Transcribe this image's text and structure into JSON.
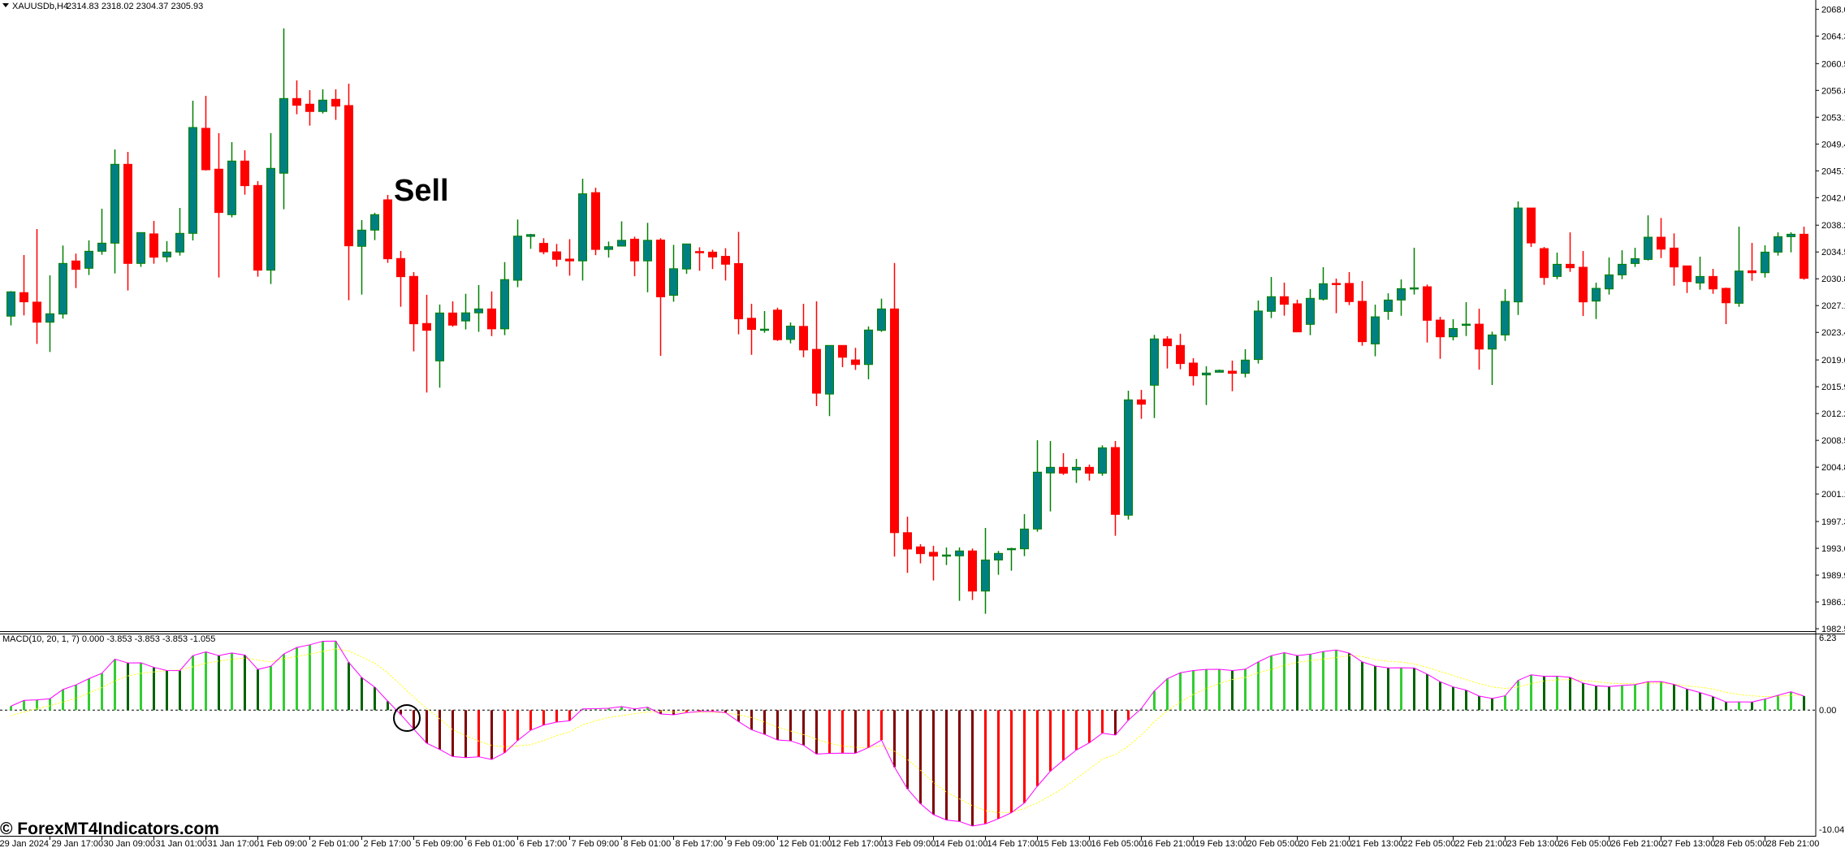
{
  "header": {
    "collapse_icon": "triangle-down-icon",
    "symbol_timeframe": "XAUUSDb,H4",
    "ohlc": "2314.83 2318.02 2304.37 2305.93"
  },
  "annotation": {
    "sell_label": "Sell",
    "crossover_marker": "circle-marker"
  },
  "watermark": "© ForexMT4Indicators.com",
  "macd_panel": {
    "label": "MACD(10, 20, 1, 7) 0.000 -3.853 -3.853 -3.853 -1.055",
    "scale_labels": [
      "6.23",
      "0.00",
      "-10.047"
    ]
  },
  "colors": {
    "bull_body": "#008080",
    "bull_outline": "#008000",
    "bear": "#FF0000",
    "hist_up_pos": "#32CD32",
    "hist_down_pos": "#006400",
    "hist_up_neg": "#FF0000",
    "hist_down_neg": "#800000",
    "macd_line": "#FF00FF",
    "signal_line": "#FFFF00"
  },
  "chart_data": [
    {
      "type": "candlestick",
      "title": "XAUUSDb,H4",
      "ylim": [
        1982.5,
        2068.0
      ],
      "price_ticks": [
        "2068.00",
        "2064.30",
        "2060.50",
        "2056.80",
        "2053.10",
        "2049.40",
        "2045.70",
        "2042.00",
        "2038.20",
        "2034.50",
        "2030.80",
        "2027.10",
        "2023.40",
        "2019.60",
        "2015.90",
        "2012.20",
        "2008.50",
        "2004.80",
        "2001.10",
        "1997.30",
        "1993.60",
        "1989.90",
        "1986.20",
        "1982.50"
      ],
      "time_labels": [
        "29 Jan 2024",
        "29 Jan 17:00",
        "30 Jan 09:00",
        "31 Jan 01:00",
        "31 Jan 17:00",
        "1 Feb 09:00",
        "2 Feb 01:00",
        "2 Feb 17:00",
        "5 Feb 09:00",
        "6 Feb 01:00",
        "6 Feb 17:00",
        "7 Feb 09:00",
        "8 Feb 01:00",
        "8 Feb 17:00",
        "9 Feb 09:00",
        "12 Feb 01:00",
        "12 Feb 17:00",
        "13 Feb 09:00",
        "14 Feb 01:00",
        "14 Feb 17:00",
        "15 Feb 13:00",
        "16 Feb 05:00",
        "16 Feb 21:00",
        "19 Feb 13:00",
        "20 Feb 05:00",
        "20 Feb 21:00",
        "21 Feb 13:00",
        "22 Feb 05:00",
        "22 Feb 21:00",
        "23 Feb 13:00",
        "26 Feb 05:00",
        "26 Feb 21:00",
        "27 Feb 13:00",
        "28 Feb 05:00",
        "28 Feb 21:00"
      ],
      "sell_signal_index": 29,
      "ohlc": [
        [
          2025.64,
          2029.1,
          2024.37,
          2029.0
        ],
        [
          2028.89,
          2034.08,
          2025.75,
          2027.62
        ],
        [
          2027.58,
          2037.67,
          2021.82,
          2024.81
        ],
        [
          2024.81,
          2031.28,
          2020.7,
          2025.97
        ],
        [
          2025.93,
          2035.39,
          2025.3,
          2032.92
        ],
        [
          2033.26,
          2034.27,
          2029.52,
          2032.1
        ],
        [
          2032.25,
          2036.1,
          2031.32,
          2034.6
        ],
        [
          2034.6,
          2040.47,
          2034.12,
          2035.72
        ],
        [
          2035.72,
          2048.65,
          2031.54,
          2046.6
        ],
        [
          2046.6,
          2048.32,
          2029.19,
          2032.92
        ],
        [
          2032.92,
          2037.18,
          2032.44,
          2037.18
        ],
        [
          2037.0,
          2038.79,
          2032.88,
          2033.78
        ],
        [
          2033.82,
          2035.99,
          2033.11,
          2034.49
        ],
        [
          2034.49,
          2040.58,
          2034.0,
          2037.07
        ],
        [
          2037.07,
          2055.38,
          2036.1,
          2051.68
        ],
        [
          2051.57,
          2056.05,
          2045.74,
          2045.85
        ],
        [
          2045.93,
          2050.9,
          2030.98,
          2039.95
        ],
        [
          2039.65,
          2049.66,
          2039.28,
          2047.05
        ],
        [
          2047.05,
          2048.54,
          2042.41,
          2043.65
        ],
        [
          2043.68,
          2044.28,
          2031.09,
          2031.99
        ],
        [
          2031.99,
          2050.9,
          2030.08,
          2046.04
        ],
        [
          2045.37,
          2065.36,
          2040.4,
          2055.68
        ],
        [
          2055.68,
          2058.18,
          2053.51,
          2054.75
        ],
        [
          2054.9,
          2056.84,
          2051.94,
          2053.89
        ],
        [
          2053.89,
          2056.95,
          2053.62,
          2055.46
        ],
        [
          2055.57,
          2056.95,
          2052.73,
          2054.63
        ],
        [
          2054.71,
          2057.73,
          2027.84,
          2035.35
        ],
        [
          2035.28,
          2038.9,
          2028.62,
          2037.52
        ],
        [
          2037.52,
          2039.91,
          2036.14,
          2039.65
        ],
        [
          2041.7,
          2042.38,
          2033.0,
          2033.56
        ],
        [
          2033.6,
          2034.64,
          2026.94,
          2031.09
        ],
        [
          2031.13,
          2031.72,
          2020.78,
          2024.59
        ],
        [
          2024.63,
          2028.59,
          2015.1,
          2023.69
        ],
        [
          2019.47,
          2027.24,
          2015.77,
          2026.08
        ],
        [
          2026.08,
          2027.69,
          2024.18,
          2024.4
        ],
        [
          2024.98,
          2028.73,
          2023.81,
          2026.1
        ],
        [
          2026.1,
          2029.94,
          2023.48,
          2026.64
        ],
        [
          2026.64,
          2029.06,
          2022.89,
          2023.89
        ],
        [
          2023.89,
          2033.1,
          2023.02,
          2030.69
        ],
        [
          2030.6,
          2038.98,
          2029.64,
          2036.69
        ],
        [
          2036.65,
          2037.0,
          2034.94,
          2036.9
        ],
        [
          2035.69,
          2036.4,
          2034.19,
          2034.52
        ],
        [
          2034.52,
          2035.61,
          2032.48,
          2033.48
        ],
        [
          2033.52,
          2036.27,
          2031.23,
          2033.27
        ],
        [
          2033.27,
          2044.61,
          2030.56,
          2042.53
        ],
        [
          2042.69,
          2043.36,
          2034.06,
          2034.85
        ],
        [
          2034.85,
          2035.94,
          2033.73,
          2035.23
        ],
        [
          2035.31,
          2038.73,
          2035.31,
          2036.11
        ],
        [
          2036.27,
          2036.61,
          2031.15,
          2033.27
        ],
        [
          2033.27,
          2038.52,
          2028.94,
          2036.11
        ],
        [
          2036.15,
          2036.4,
          2020.18,
          2028.31
        ],
        [
          2028.52,
          2035.48,
          2027.64,
          2032.19
        ],
        [
          2032.15,
          2035.61,
          2031.48,
          2035.61
        ],
        [
          2034.56,
          2035.15,
          2031.9,
          2034.4
        ],
        [
          2034.48,
          2034.81,
          2032.15,
          2033.81
        ],
        [
          2033.9,
          2035.02,
          2030.56,
          2032.81
        ],
        [
          2032.9,
          2037.27,
          2023.14,
          2025.27
        ],
        [
          2025.35,
          2027.35,
          2020.31,
          2023.81
        ],
        [
          2023.73,
          2026.35,
          2023.35,
          2023.85
        ],
        [
          2026.48,
          2026.81,
          2022.23,
          2022.39
        ],
        [
          2022.43,
          2024.77,
          2021.89,
          2024.27
        ],
        [
          2024.23,
          2027.35,
          2019.97,
          2020.98
        ],
        [
          2021.06,
          2027.69,
          2013.22,
          2015.01
        ],
        [
          2014.89,
          2021.6,
          2011.85,
          2021.6
        ],
        [
          2021.6,
          2021.6,
          2018.6,
          2019.97
        ],
        [
          2019.6,
          2021.27,
          2018.22,
          2018.97
        ],
        [
          2018.97,
          2024.23,
          2016.93,
          2023.73
        ],
        [
          2023.68,
          2028.06,
          2023.48,
          2026.64
        ],
        [
          2026.64,
          2032.98,
          1992.46,
          1995.76
        ],
        [
          1995.76,
          1997.96,
          1990.21,
          1993.5
        ],
        [
          1993.8,
          1994.17,
          1991.52,
          1992.86
        ],
        [
          1993.05,
          1993.95,
          1989.16,
          1992.52
        ],
        [
          1992.56,
          1993.72,
          1991.29,
          1992.68
        ],
        [
          1992.56,
          1993.72,
          1986.36,
          1993.24
        ],
        [
          1993.24,
          1993.57,
          1986.47,
          1987.7
        ],
        [
          1987.7,
          1996.41,
          1984.57,
          1991.99
        ],
        [
          1991.99,
          1993.24,
          1989.95,
          1992.9
        ],
        [
          1993.42,
          1993.68,
          1990.51,
          1993.57
        ],
        [
          1993.53,
          1998.32,
          1992.52,
          1996.26
        ],
        [
          1996.26,
          2008.52,
          1995.89,
          2004.11
        ],
        [
          2004.0,
          2008.41,
          1998.69,
          2004.78
        ],
        [
          2004.78,
          2006.73,
          2003.74,
          2003.96
        ],
        [
          2004.41,
          2005.94,
          2002.62,
          2004.78
        ],
        [
          2004.78,
          2005.16,
          2002.95,
          2003.96
        ],
        [
          2003.96,
          2007.81,
          2003.62,
          2007.47
        ],
        [
          2007.51,
          2008.41,
          1995.33,
          1998.28
        ],
        [
          1998.17,
          2015.36,
          1997.57,
          2014.09
        ],
        [
          2014.09,
          2015.47,
          2011.47,
          2013.49
        ],
        [
          2016.11,
          2023.06,
          2011.58,
          2022.5
        ],
        [
          2022.5,
          2022.87,
          2018.42,
          2021.56
        ],
        [
          2021.6,
          2023.21,
          2018.31,
          2019.1
        ],
        [
          2019.17,
          2019.84,
          2016.07,
          2017.41
        ],
        [
          2017.53,
          2018.72,
          2013.38,
          2017.79
        ],
        [
          2017.9,
          2018.27,
          2017.9,
          2018.16
        ],
        [
          2018.05,
          2019.51,
          2015.28,
          2017.75
        ],
        [
          2017.75,
          2021.08,
          2017.19,
          2019.58
        ],
        [
          2019.66,
          2027.8,
          2019.1,
          2026.35
        ],
        [
          2026.31,
          2031.05,
          2025.37,
          2028.33
        ],
        [
          2028.33,
          2030.27,
          2025.71,
          2027.28
        ],
        [
          2027.35,
          2027.91,
          2023.47,
          2023.47
        ],
        [
          2024.51,
          2029.37,
          2023.02,
          2028.1
        ],
        [
          2027.99,
          2032.4,
          2027.8,
          2030.12
        ],
        [
          2030.16,
          2030.83,
          2026.05,
          2030.08
        ],
        [
          2030.16,
          2031.73,
          2027.17,
          2027.65
        ],
        [
          2027.69,
          2030.49,
          2021.56,
          2022.12
        ],
        [
          2021.81,
          2027.23,
          2020.1,
          2025.55
        ],
        [
          2026.3,
          2028.8,
          2025.14,
          2027.87
        ],
        [
          2027.87,
          2030.71,
          2025.7,
          2029.44
        ],
        [
          2029.44,
          2035.08,
          2028.62,
          2029.55
        ],
        [
          2029.7,
          2030.0,
          2022.0,
          2025.07
        ],
        [
          2025.1,
          2025.55,
          2019.76,
          2022.79
        ],
        [
          2022.79,
          2025.22,
          2022.3,
          2023.94
        ],
        [
          2024.47,
          2027.57,
          2022.9,
          2024.54
        ],
        [
          2024.54,
          2026.67,
          2018.26,
          2021.1
        ],
        [
          2021.1,
          2023.5,
          2016.14,
          2023.05
        ],
        [
          2023.05,
          2029.36,
          2022.23,
          2027.68
        ],
        [
          2027.61,
          2041.47,
          2025.81,
          2040.57
        ],
        [
          2040.57,
          2040.57,
          2035.19,
          2035.75
        ],
        [
          2034.97,
          2035.19,
          2029.96,
          2030.97
        ],
        [
          2031.12,
          2034.41,
          2030.75,
          2032.8
        ],
        [
          2032.8,
          2037.21,
          2031.75,
          2032.32
        ],
        [
          2032.39,
          2034.63,
          2025.66,
          2027.61
        ],
        [
          2027.72,
          2030.26,
          2025.25,
          2029.48
        ],
        [
          2029.4,
          2033.74,
          2028.62,
          2031.34
        ],
        [
          2031.34,
          2034.74,
          2030.75,
          2032.8
        ],
        [
          2032.91,
          2035.08,
          2032.43,
          2033.58
        ],
        [
          2033.47,
          2039.56,
          2033.32,
          2036.54
        ],
        [
          2036.54,
          2039.19,
          2033.66,
          2034.89
        ],
        [
          2035.04,
          2037.06,
          2029.85,
          2032.43
        ],
        [
          2032.58,
          2032.58,
          2028.84,
          2030.41
        ],
        [
          2030.22,
          2033.85,
          2029.29,
          2031.12
        ],
        [
          2031.12,
          2032.17,
          2028.73,
          2029.4
        ],
        [
          2029.48,
          2029.59,
          2024.54,
          2027.49
        ],
        [
          2027.42,
          2037.99,
          2026.93,
          2031.87
        ],
        [
          2031.9,
          2035.75,
          2030.52,
          2031.64
        ],
        [
          2031.64,
          2035.42,
          2030.97,
          2034.48
        ],
        [
          2034.48,
          2037.21,
          2034.0,
          2036.61
        ],
        [
          2036.61,
          2037.21,
          2034.45,
          2036.95
        ],
        [
          2036.95,
          2037.99,
          2030.67,
          2030.86
        ]
      ]
    },
    {
      "type": "bar",
      "title": "MACD(10, 20, 1, 7)",
      "ylim": [
        -10.047,
        6.23
      ],
      "macd": [
        0.34,
        0.83,
        0.87,
        0.97,
        1.75,
        2.14,
        2.67,
        3.13,
        4.32,
        4.0,
        4.01,
        3.63,
        3.36,
        3.35,
        4.62,
        4.94,
        4.62,
        4.85,
        4.67,
        3.45,
        3.72,
        4.76,
        5.31,
        5.54,
        5.84,
        5.85,
        4.05,
        2.76,
        1.95,
        0.76,
        -0.37,
        -1.61,
        -2.8,
        -3.33,
        -3.93,
        -4.02,
        -3.95,
        -4.18,
        -3.61,
        -2.57,
        -1.7,
        -1.26,
        -1.01,
        -0.9,
        0.11,
        0.12,
        0.16,
        0.3,
        0.11,
        0.25,
        -0.32,
        -0.39,
        -0.21,
        -0.11,
        -0.1,
        -0.21,
        -0.97,
        -1.66,
        -2.05,
        -2.53,
        -2.6,
        -2.97,
        -3.72,
        -3.66,
        -3.64,
        -3.65,
        -3.17,
        -2.53,
        -4.83,
        -6.67,
        -7.93,
        -8.85,
        -9.31,
        -9.43,
        -9.82,
        -9.63,
        -9.2,
        -8.69,
        -7.86,
        -6.44,
        -5.17,
        -4.25,
        -3.38,
        -2.76,
        -1.95,
        -2.11,
        -0.85,
        0.14,
        1.63,
        2.67,
        3.17,
        3.36,
        3.45,
        3.46,
        3.36,
        3.47,
        4.09,
        4.62,
        4.87,
        4.62,
        4.74,
        4.97,
        5.1,
        4.83,
        4.09,
        3.74,
        3.58,
        3.59,
        3.57,
        3.05,
        2.41,
        1.97,
        1.7,
        1.19,
        0.99,
        1.22,
        2.52,
        3.0,
        2.87,
        2.88,
        2.78,
        2.29,
        2.06,
        2.0,
        2.09,
        2.16,
        2.41,
        2.42,
        2.18,
        1.79,
        1.49,
        1.15,
        0.69,
        0.7,
        0.69,
        0.94,
        1.26,
        1.56,
        1.19
      ],
      "signal": [
        -0.46,
        -0.16,
        0.14,
        0.37,
        0.69,
        1.01,
        1.45,
        1.91,
        2.48,
        2.9,
        3.13,
        3.24,
        3.36,
        3.4,
        3.68,
        3.98,
        4.16,
        4.32,
        4.41,
        4.25,
        4.09,
        4.37,
        4.55,
        4.74,
        4.97,
        5.2,
        5.01,
        4.51,
        3.98,
        3.17,
        2.14,
        1.1,
        0.14,
        -0.74,
        -1.66,
        -2.16,
        -2.62,
        -2.99,
        -3.1,
        -3.03,
        -2.92,
        -2.57,
        -2.16,
        -1.84,
        -1.24,
        -0.9,
        -0.62,
        -0.46,
        -0.3,
        -0.16,
        -0.11,
        -0.16,
        -0.18,
        -0.18,
        -0.18,
        -0.23,
        -0.39,
        -0.62,
        -1.01,
        -1.43,
        -1.77,
        -2.07,
        -2.46,
        -2.8,
        -3.03,
        -3.15,
        -3.2,
        -2.99,
        -3.49,
        -4.18,
        -5.1,
        -6.14,
        -6.94,
        -7.52,
        -8.09,
        -8.51,
        -8.67,
        -8.67,
        -8.32,
        -7.86,
        -7.24,
        -6.6,
        -5.79,
        -4.99,
        -4.14,
        -3.77,
        -3.03,
        -2.11,
        -0.97,
        -0.05,
        0.69,
        1.33,
        1.84,
        2.25,
        2.6,
        2.78,
        3.17,
        3.45,
        3.79,
        4.05,
        4.21,
        4.32,
        4.46,
        4.62,
        4.55,
        4.27,
        4.15,
        4.08,
        3.92,
        3.62,
        3.28,
        2.94,
        2.59,
        2.25,
        1.97,
        1.83,
        1.97,
        2.25,
        2.48,
        2.57,
        2.59,
        2.52,
        2.41,
        2.29,
        2.25,
        2.25,
        2.29,
        2.29,
        2.2,
        2.06,
        1.95,
        1.79,
        1.51,
        1.33,
        1.22,
        1.15,
        1.17,
        1.26,
        1.28
      ],
      "crossover_index": 30
    }
  ]
}
